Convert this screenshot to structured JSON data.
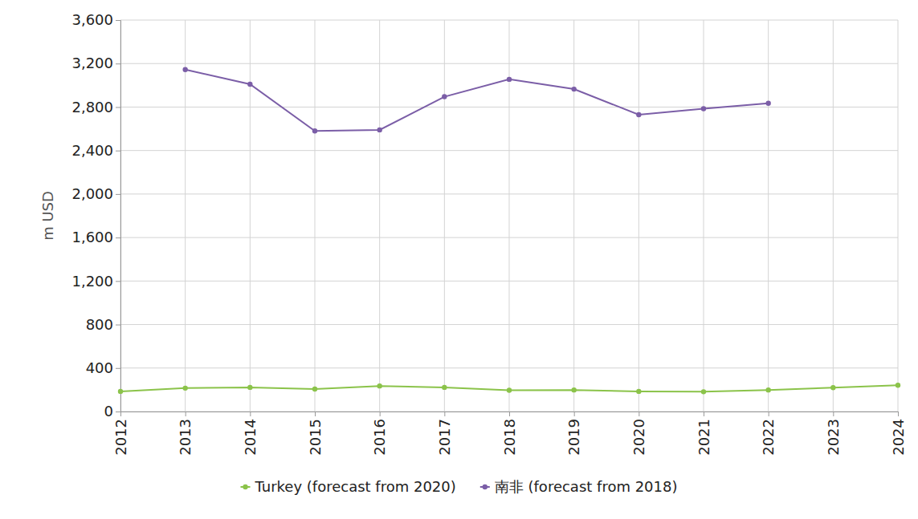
{
  "chart_data": {
    "type": "line",
    "y_label": "m USD",
    "x": [
      2012,
      2013,
      2014,
      2015,
      2016,
      2017,
      2018,
      2019,
      2020,
      2021,
      2022,
      2023,
      2024
    ],
    "xlim": [
      2012,
      2024
    ],
    "xticks": [
      2012,
      2013,
      2014,
      2015,
      2016,
      2017,
      2018,
      2019,
      2020,
      2021,
      2022,
      2023,
      2024
    ],
    "ylim": [
      0,
      3600
    ],
    "yticks": [
      0,
      400,
      800,
      {
        "value": 1200,
        "label": "1,200"
      },
      {
        "value": 1600,
        "label": "1,600"
      },
      {
        "value": 2000,
        "label": "2,000"
      },
      {
        "value": 2400,
        "label": "2,400"
      },
      {
        "value": 2800,
        "label": "2,800"
      },
      {
        "value": 3200,
        "label": "3,200"
      },
      {
        "value": 3600,
        "label": "3,600"
      }
    ],
    "grid": true,
    "legend": "bottom",
    "series": [
      {
        "name": "Turkey (forecast from 2020)",
        "color": "#8bc34a",
        "marker": "circle",
        "values": [
          185,
          215,
          222,
          207,
          235,
          222,
          195,
          198,
          185,
          182,
          198,
          220,
          242
        ]
      },
      {
        "name": "南非 (forecast from 2018)",
        "color": "#7b5ea7",
        "marker": "circle",
        "values": [
          null,
          3145,
          3010,
          2580,
          2590,
          2895,
          3055,
          2965,
          2730,
          2785,
          2835,
          null,
          null
        ]
      }
    ]
  }
}
